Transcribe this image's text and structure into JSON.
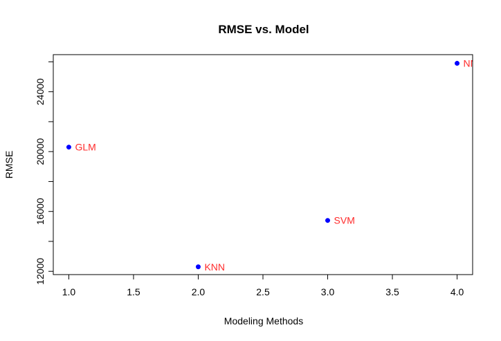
{
  "chart_data": {
    "type": "scatter",
    "title": "RMSE vs. Model",
    "xlabel": "Modeling Methods",
    "ylabel": "RMSE",
    "xlim": [
      0.88,
      4.12
    ],
    "ylim": [
      11780,
      26480
    ],
    "x_ticks": [
      1.0,
      1.5,
      2.0,
      2.5,
      3.0,
      3.5,
      4.0
    ],
    "x_tick_labels": [
      "1.0",
      "1.5",
      "2.0",
      "2.5",
      "3.0",
      "3.5",
      "4.0"
    ],
    "y_ticks": [
      12000,
      14000,
      16000,
      18000,
      20000,
      22000,
      24000,
      26000
    ],
    "y_tick_labels": [
      "12000",
      "",
      "16000",
      "",
      "20000",
      "",
      "24000",
      ""
    ],
    "grid": false,
    "point_color": "#0000ff",
    "label_color": "#ff2a2a",
    "points": [
      {
        "x": 1,
        "y": 20300,
        "label": "GLM"
      },
      {
        "x": 2,
        "y": 12300,
        "label": "KNN"
      },
      {
        "x": 3,
        "y": 15400,
        "label": "SVM"
      },
      {
        "x": 4,
        "y": 25900,
        "label": "NN"
      }
    ]
  }
}
